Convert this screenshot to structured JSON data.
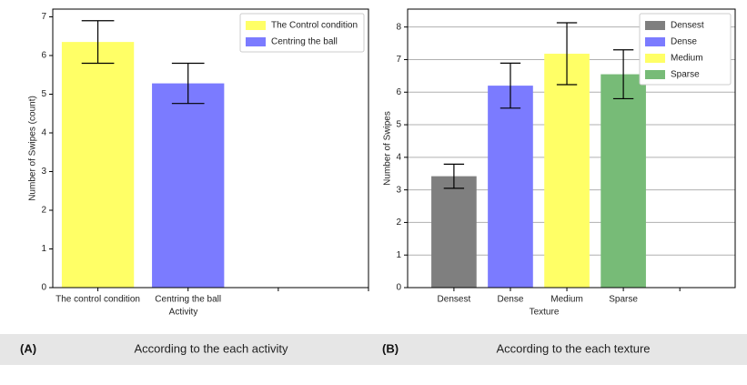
{
  "chart_data": [
    {
      "type": "bar",
      "xlabel": "Activity",
      "ylabel": "Number of Swipes (count)",
      "categories": [
        "The control condition",
        "Centring the ball",
        null,
        null
      ],
      "series": [
        {
          "name": "The Control condition",
          "color": "#ffff66",
          "values": [
            6.35,
            null,
            null,
            null
          ],
          "errors": [
            0.55,
            null,
            null,
            null
          ]
        },
        {
          "name": "Centring the ball",
          "color": "#7b7bff",
          "values": [
            null,
            5.28,
            null,
            null
          ],
          "errors": [
            null,
            0.52,
            null,
            null
          ]
        }
      ],
      "ylim": [
        0,
        7.2
      ],
      "yticks": [
        0,
        1,
        2,
        3,
        4,
        5,
        6,
        7
      ],
      "grid": false,
      "legend": "upper right"
    },
    {
      "type": "bar",
      "xlabel": "Texture",
      "ylabel": "Number of Swipes",
      "categories": [
        "Densest",
        "Dense",
        "Medium",
        "Sparse",
        null
      ],
      "series": [
        {
          "name": "Densest",
          "color": "#7f7f7f",
          "values": [
            3.42,
            null,
            null,
            null,
            null
          ],
          "errors": [
            0.37,
            null,
            null,
            null,
            null
          ]
        },
        {
          "name": "Dense",
          "color": "#7b7bff",
          "values": [
            null,
            6.2,
            null,
            null,
            null
          ],
          "errors": [
            null,
            0.69,
            null,
            null,
            null
          ]
        },
        {
          "name": "Medium",
          "color": "#ffff66",
          "values": [
            null,
            null,
            7.18,
            null,
            null
          ],
          "errors": [
            null,
            null,
            0.95,
            null,
            null
          ]
        },
        {
          "name": "Sparse",
          "color": "#77bb77",
          "values": [
            null,
            null,
            null,
            6.55,
            null
          ],
          "errors": [
            null,
            null,
            null,
            0.75,
            null
          ]
        }
      ],
      "ylim": [
        0,
        8.55
      ],
      "yticks": [
        0,
        1,
        2,
        3,
        4,
        5,
        6,
        7,
        8
      ],
      "grid": true,
      "legend": "upper right"
    }
  ],
  "captions": [
    {
      "label": "(A)",
      "text": "According to the each activity"
    },
    {
      "label": "(B)",
      "text": "According to the each texture"
    }
  ]
}
